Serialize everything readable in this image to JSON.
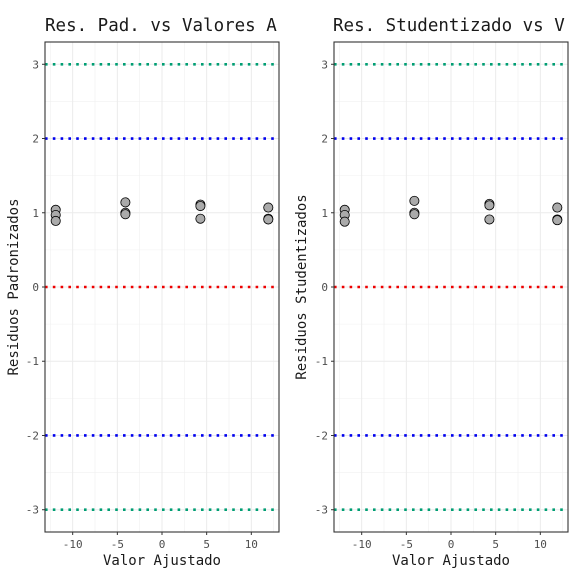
{
  "chart_data": [
    {
      "type": "scatter",
      "title": "Res. Pad. vs Valores A",
      "xlabel": "Valor Ajustado",
      "ylabel": "Residuos Padronizados",
      "xlim": [
        -13.1,
        13.1
      ],
      "ylim": [
        -3.3,
        3.3
      ],
      "xticks": [
        -10,
        -5,
        0,
        5,
        10
      ],
      "xtick_labels": [
        "-10",
        "-5",
        "0",
        "5",
        "10"
      ],
      "yticks": [
        -3,
        -2,
        -1,
        0,
        1,
        2,
        3
      ],
      "ytick_labels": [
        "-3",
        "-2",
        "-1",
        "0",
        "1",
        "2",
        "3"
      ],
      "grid": true,
      "reference_lines": [
        {
          "y": 3,
          "color": "#009E73",
          "style": "dotted"
        },
        {
          "y": 2,
          "color": "#0000EE",
          "style": "dotted"
        },
        {
          "y": 0,
          "color": "#EE0000",
          "style": "dotted"
        },
        {
          "y": -2,
          "color": "#0000EE",
          "style": "dotted"
        },
        {
          "y": -3,
          "color": "#009E73",
          "style": "dotted"
        }
      ],
      "series": [
        {
          "points": [
            {
              "x": -11.9,
              "y": 1.04
            },
            {
              "x": -11.9,
              "y": 0.97
            },
            {
              "x": -11.9,
              "y": 0.89
            },
            {
              "x": -4.1,
              "y": 1.14
            },
            {
              "x": -4.1,
              "y": 1.0
            },
            {
              "x": -4.1,
              "y": 0.98
            },
            {
              "x": 4.3,
              "y": 1.11
            },
            {
              "x": 4.3,
              "y": 1.09
            },
            {
              "x": 4.3,
              "y": 0.92
            },
            {
              "x": 11.9,
              "y": 1.07
            },
            {
              "x": 11.9,
              "y": 0.92
            },
            {
              "x": 11.9,
              "y": 0.91
            }
          ]
        }
      ]
    },
    {
      "type": "scatter",
      "title": "Res. Studentizado vs V",
      "xlabel": "Valor Ajustado",
      "ylabel": "Residuos Studentizados",
      "xlim": [
        -13.1,
        13.1
      ],
      "ylim": [
        -3.3,
        3.3
      ],
      "xticks": [
        -10,
        -5,
        0,
        5,
        10
      ],
      "xtick_labels": [
        "-10",
        "-5",
        "0",
        "5",
        "10"
      ],
      "yticks": [
        -3,
        -2,
        -1,
        0,
        1,
        2,
        3
      ],
      "ytick_labels": [
        "-3",
        "-2",
        "-1",
        "0",
        "1",
        "2",
        "3"
      ],
      "grid": true,
      "reference_lines": [
        {
          "y": 3,
          "color": "#009E73",
          "style": "dotted"
        },
        {
          "y": 2,
          "color": "#0000EE",
          "style": "dotted"
        },
        {
          "y": 0,
          "color": "#EE0000",
          "style": "dotted"
        },
        {
          "y": -2,
          "color": "#0000EE",
          "style": "dotted"
        },
        {
          "y": -3,
          "color": "#009E73",
          "style": "dotted"
        }
      ],
      "series": [
        {
          "points": [
            {
              "x": -11.9,
              "y": 1.04
            },
            {
              "x": -11.9,
              "y": 0.97
            },
            {
              "x": -11.9,
              "y": 0.88
            },
            {
              "x": -4.1,
              "y": 1.16
            },
            {
              "x": -4.1,
              "y": 1.0
            },
            {
              "x": -4.1,
              "y": 0.98
            },
            {
              "x": 4.3,
              "y": 1.12
            },
            {
              "x": 4.3,
              "y": 1.1
            },
            {
              "x": 4.3,
              "y": 0.91
            },
            {
              "x": 11.9,
              "y": 1.07
            },
            {
              "x": 11.9,
              "y": 0.91
            },
            {
              "x": 11.9,
              "y": 0.9
            }
          ]
        }
      ]
    }
  ]
}
